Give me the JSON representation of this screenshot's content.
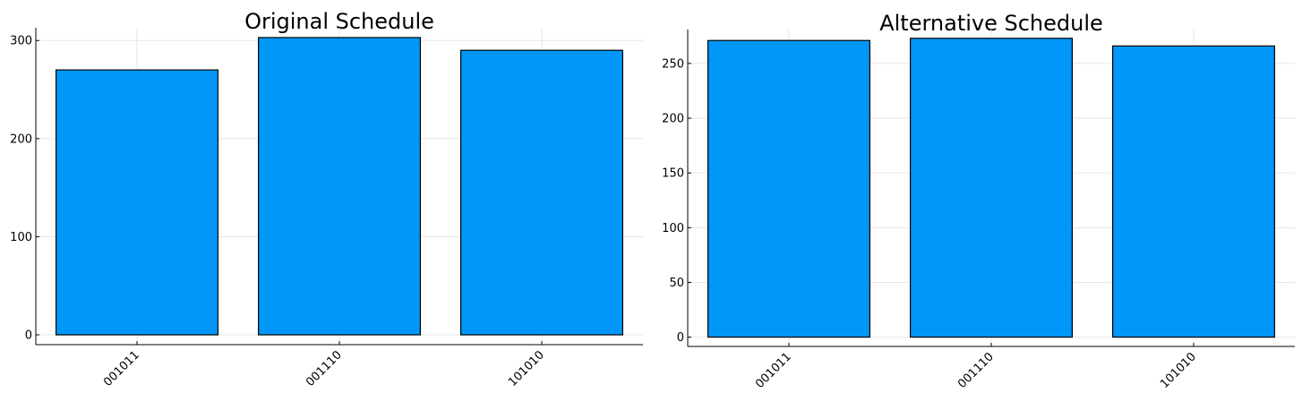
{
  "colors": {
    "bar": "#0097f9",
    "grid": "#e6e6e6",
    "axis": "#000000"
  },
  "chart_data": [
    {
      "type": "bar",
      "title": "Original Schedule",
      "categories": [
        "001011",
        "001110",
        "101010"
      ],
      "values": [
        270,
        303,
        290
      ],
      "ylim": [
        -10,
        313
      ],
      "yticks": [
        0,
        100,
        200,
        300
      ],
      "xlabel": "",
      "ylabel": "",
      "grid": true,
      "legend": "none"
    },
    {
      "type": "bar",
      "title": "Alternative Schedule",
      "categories": [
        "001011",
        "001110",
        "101010"
      ],
      "values": [
        271,
        273,
        266
      ],
      "ylim": [
        -8.5,
        281
      ],
      "yticks": [
        0,
        50,
        100,
        150,
        200,
        250
      ],
      "xlabel": "",
      "ylabel": "",
      "grid": true,
      "legend": "none"
    }
  ]
}
